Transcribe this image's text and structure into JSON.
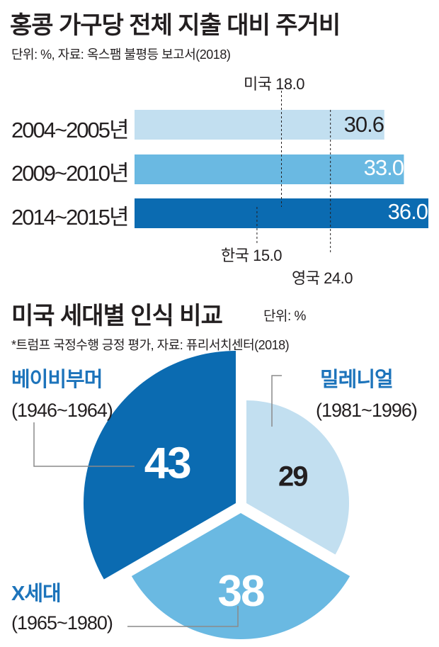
{
  "chart_data": [
    {
      "type": "bar",
      "title": "홍콩 가구당 전체 지출 대비 주거비",
      "subtitle": "단위: %, 자료: 옥스팸 불평등 보고서(2018)",
      "categories": [
        "2004~2005년",
        "2009~2010년",
        "2014~2015년"
      ],
      "values": [
        30.6,
        33.0,
        36.0
      ],
      "value_labels": [
        "30.6",
        "33.0",
        "36.0"
      ],
      "colors": [
        "#c2dff0",
        "#6ab9e2",
        "#0b6bb1"
      ],
      "xlim": [
        0,
        36.0
      ],
      "reference_lines": [
        {
          "label": "미국",
          "value": 18.0,
          "value_label": "18.0"
        },
        {
          "label": "한국",
          "value": 15.0,
          "value_label": "15.0"
        },
        {
          "label": "영국",
          "value": 24.0,
          "value_label": "24.0"
        }
      ]
    },
    {
      "type": "pie",
      "title": "미국 세대별 인식 비교",
      "unit_note": "단위: %",
      "subtitle": "*트럼프 국정수행 긍정 평가, 자료: 퓨리서치센터(2018)",
      "slices": [
        {
          "name": "베이비부머",
          "years": "(1946~1964)",
          "value": 43,
          "value_label": "43",
          "color": "#0b6bb1",
          "text_color": "#ffffff"
        },
        {
          "name": "밀레니얼",
          "years": "(1981~1996)",
          "value": 29,
          "value_label": "29",
          "color": "#c2dff0",
          "text_color": "#231f20"
        },
        {
          "name": "X세대",
          "years": "(1965~1980)",
          "value": 38,
          "value_label": "38",
          "color": "#6ab9e2",
          "text_color": "#ffffff"
        }
      ]
    }
  ]
}
